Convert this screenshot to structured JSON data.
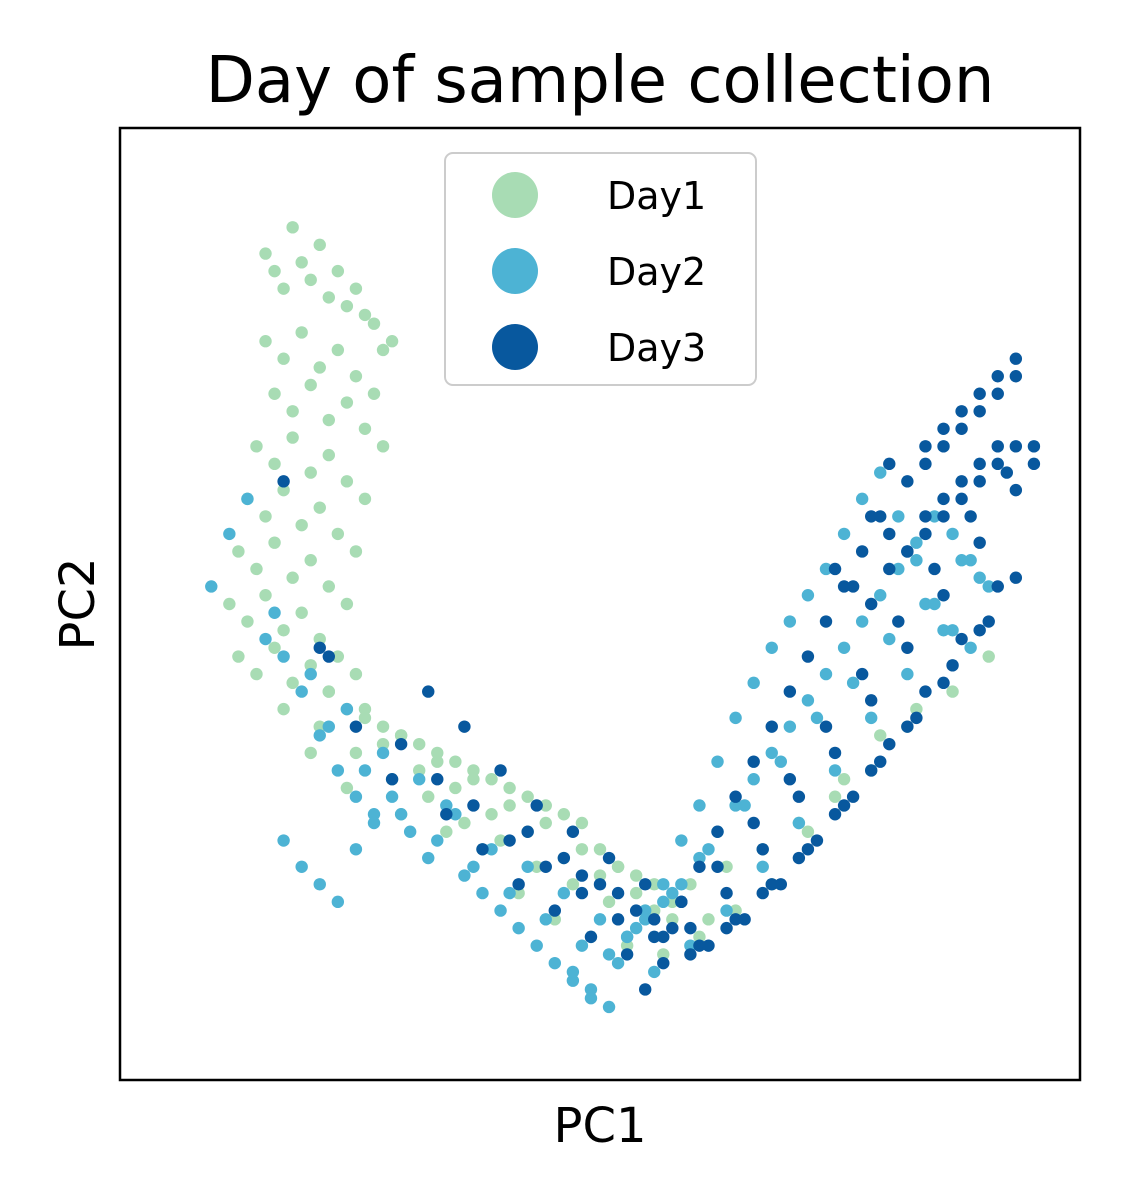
{
  "chart_data": {
    "type": "scatter",
    "title": "Day of sample collection",
    "xlabel": "PC1",
    "ylabel": "PC2",
    "x_ticks": false,
    "y_ticks": false,
    "grid": false,
    "legend": {
      "placement": "top-center"
    },
    "xlim": [
      0,
      100
    ],
    "ylim": [
      0,
      100
    ],
    "series": [
      {
        "name": "Day1",
        "color": "#a8dcb4",
        "shape_hint": "upper-left arm to bottom",
        "points_x": [
          13,
          14,
          15,
          16,
          17,
          18,
          19,
          20,
          21,
          22,
          23,
          24,
          25,
          26,
          27,
          13,
          15,
          17,
          19,
          21,
          23,
          25,
          14,
          16,
          18,
          20,
          22,
          24,
          26,
          12,
          14,
          16,
          18,
          20,
          22,
          24,
          11,
          13,
          15,
          17,
          19,
          21,
          23,
          10,
          12,
          14,
          16,
          18,
          20,
          22,
          9,
          11,
          13,
          15,
          17,
          19,
          21,
          23,
          10,
          12,
          14,
          16,
          18,
          20,
          22,
          24,
          26,
          28,
          30,
          32,
          34,
          36,
          38,
          40,
          42,
          44,
          46,
          48,
          50,
          52,
          54,
          56,
          58,
          20,
          24,
          28,
          32,
          36,
          40,
          44,
          48,
          52,
          56,
          15,
          19,
          23,
          27,
          31,
          35,
          39,
          43,
          47,
          51,
          55,
          60,
          64,
          68,
          72,
          76,
          80,
          84,
          26,
          30,
          34,
          38,
          42,
          46,
          50,
          54,
          58,
          62,
          18,
          22,
          28,
          33,
          37,
          41,
          45,
          49,
          53,
          57,
          61,
          65,
          69,
          73,
          77,
          81,
          85,
          89,
          93
        ],
        "points_y": [
          90,
          88,
          86,
          93,
          89,
          87,
          91,
          85,
          88,
          84,
          86,
          83,
          82,
          79,
          80,
          80,
          78,
          81,
          77,
          79,
          76,
          74,
          74,
          72,
          75,
          71,
          73,
          70,
          68,
          68,
          66,
          69,
          65,
          67,
          64,
          62,
          62,
          60,
          63,
          59,
          61,
          58,
          56,
          56,
          54,
          57,
          53,
          55,
          52,
          50,
          50,
          48,
          51,
          47,
          49,
          46,
          44,
          42,
          44,
          42,
          45,
          41,
          43,
          40,
          38,
          37,
          36,
          35,
          34,
          33,
          32,
          31,
          30,
          29,
          28,
          27,
          26,
          25,
          22,
          20,
          19,
          15,
          14,
          40,
          38,
          35,
          32,
          30,
          27,
          25,
          22,
          20,
          18,
          38,
          36,
          33,
          30,
          28,
          25,
          23,
          20,
          18,
          16,
          15,
          18,
          20,
          22,
          25,
          28,
          31,
          36,
          34,
          31,
          29,
          26,
          24,
          21,
          19,
          17,
          16,
          14,
          33,
          29,
          26,
          24,
          22,
          17,
          14,
          12,
          11,
          10,
          12,
          15,
          18,
          24,
          30,
          35,
          38,
          40,
          44
        ]
      },
      {
        "name": "Day2",
        "color": "#4db3d4",
        "shape_hint": "spread along whole arc",
        "points_x": [
          7,
          9,
          11,
          13,
          15,
          17,
          19,
          21,
          23,
          25,
          15,
          17,
          19,
          21,
          23,
          25,
          27,
          29,
          31,
          33,
          35,
          37,
          39,
          41,
          43,
          45,
          47,
          49,
          51,
          53,
          55,
          57,
          59,
          61,
          63,
          65,
          67,
          69,
          71,
          73,
          75,
          77,
          79,
          81,
          83,
          85,
          87,
          89,
          91,
          93,
          14,
          18,
          22,
          26,
          30,
          34,
          38,
          42,
          46,
          50,
          54,
          58,
          62,
          66,
          70,
          74,
          78,
          82,
          86,
          90,
          20,
          24,
          28,
          32,
          36,
          40,
          44,
          48,
          52,
          56,
          60,
          64,
          68,
          72,
          76,
          80,
          84,
          88,
          92,
          47,
          49,
          51,
          53,
          55,
          57,
          59,
          61,
          63,
          65,
          67,
          69,
          71,
          73,
          75,
          77,
          79,
          81,
          83,
          85,
          87,
          89,
          91
        ],
        "points_y": [
          52,
          58,
          62,
          46,
          44,
          40,
          35,
          31,
          28,
          26,
          23,
          20,
          18,
          16,
          22,
          25,
          28,
          24,
          21,
          27,
          19,
          17,
          15,
          13,
          11,
          9,
          7,
          5,
          10,
          12,
          14,
          16,
          18,
          21,
          24,
          27,
          30,
          33,
          36,
          39,
          42,
          45,
          48,
          51,
          54,
          57,
          60,
          58,
          55,
          52,
          49,
          42,
          38,
          33,
          30,
          26,
          22,
          20,
          17,
          14,
          13,
          17,
          22,
          27,
          32,
          37,
          41,
          46,
          50,
          55,
          36,
          31,
          26,
          23,
          20,
          17,
          14,
          11,
          9,
          8,
          11,
          15,
          20,
          25,
          31,
          37,
          42,
          47,
          53,
          8,
          6,
          4,
          12,
          15,
          18,
          23,
          27,
          32,
          37,
          41,
          45,
          48,
          51,
          54,
          58,
          62,
          65,
          60,
          55,
          50,
          47,
          45
        ]
      },
      {
        "name": "Day3",
        "color": "#08589e",
        "shape_hint": "bottom to upper-right arm",
        "points_x": [
          15,
          19,
          23,
          27,
          33,
          37,
          41,
          45,
          49,
          53,
          57,
          61,
          65,
          69,
          73,
          77,
          81,
          85,
          89,
          93,
          28,
          32,
          36,
          40,
          44,
          48,
          52,
          56,
          60,
          64,
          68,
          72,
          76,
          80,
          84,
          88,
          92,
          96,
          42,
          46,
          50,
          54,
          58,
          62,
          66,
          70,
          74,
          78,
          82,
          86,
          90,
          94,
          20,
          31,
          35,
          39,
          43,
          47,
          51,
          55,
          59,
          63,
          67,
          71,
          75,
          79,
          83,
          87,
          91,
          95,
          48,
          52,
          56,
          60,
          64,
          68,
          72,
          76,
          80,
          84,
          88,
          92,
          96,
          86,
          88,
          90,
          92,
          94,
          96,
          98,
          82,
          84,
          86,
          88,
          90,
          92,
          94,
          96,
          80,
          82,
          84,
          86,
          88,
          90,
          92,
          94,
          76,
          78,
          80,
          82,
          84,
          86,
          88,
          90,
          92,
          94,
          96,
          98,
          55,
          57,
          59,
          61,
          63,
          65,
          67,
          69,
          71,
          73,
          75,
          77,
          79,
          81
        ],
        "points_y": [
          64,
          45,
          36,
          30,
          26,
          22,
          18,
          15,
          12,
          10,
          9,
          11,
          14,
          18,
          22,
          27,
          32,
          37,
          43,
          48,
          34,
          30,
          27,
          23,
          20,
          17,
          14,
          12,
          10,
          13,
          17,
          21,
          26,
          31,
          36,
          41,
          47,
          53,
          24,
          21,
          18,
          15,
          13,
          11,
          14,
          18,
          23,
          28,
          34,
          40,
          46,
          52,
          44,
          40,
          36,
          31,
          27,
          24,
          21,
          18,
          16,
          20,
          25,
          30,
          36,
          42,
          48,
          54,
          60,
          65,
          19,
          17,
          14,
          13,
          17,
          22,
          28,
          33,
          39,
          45,
          51,
          57,
          63,
          68,
          70,
          72,
          74,
          76,
          78,
          68,
          66,
          64,
          66,
          68,
          70,
          72,
          74,
          76,
          60,
          58,
          56,
          60,
          62,
          64,
          66,
          68,
          54,
          52,
          50,
          54,
          56,
          58,
          60,
          62,
          64,
          66,
          68,
          66,
          6,
          12,
          16,
          20,
          24,
          28,
          32,
          36,
          40,
          44,
          48,
          52,
          56,
          60
        ]
      }
    ]
  }
}
